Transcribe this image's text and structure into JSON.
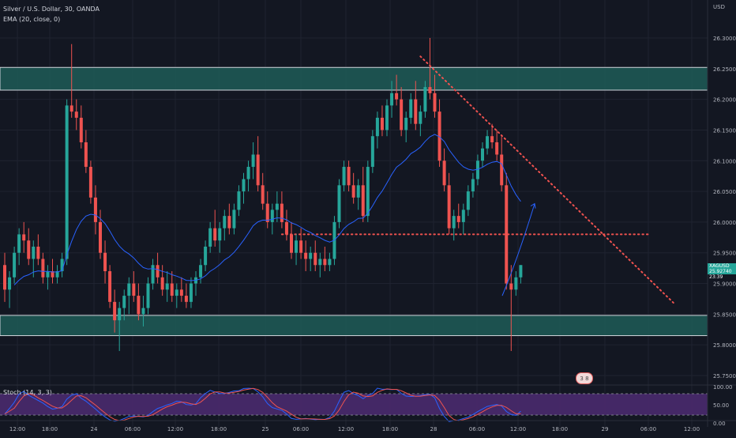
{
  "legend": {
    "symbol_line": "Silver / U.S. Dollar, 30, OANDA",
    "ema_line": "EMA (20, close, 0)"
  },
  "price_axis": {
    "currency": "USD",
    "ticks": [
      "26.30000",
      "26.25000",
      "26.20000",
      "26.15000",
      "26.10000",
      "26.05000",
      "26.00000",
      "25.95000",
      "25.90000",
      "25.85000",
      "25.80000",
      "25.75000"
    ],
    "tick_values": [
      26.3,
      26.25,
      26.2,
      26.15,
      26.1,
      26.05,
      26.0,
      25.95,
      25.9,
      25.85,
      25.8,
      25.75
    ],
    "current_symbol": "XAGUSD",
    "current_price": "25.92740",
    "countdown": "23:39"
  },
  "time_axis": {
    "ticks": [
      "12:00",
      "18:00",
      "24",
      "06:00",
      "12:00",
      "18:00",
      "25",
      "06:00",
      "12:00",
      "18:00",
      "28",
      "06:00",
      "12:00",
      "18:00",
      "29",
      "06:00",
      "12:00"
    ]
  },
  "stoch": {
    "label": "Stoch (14, 3, 3)",
    "ticks": [
      "100.00",
      "50.00",
      "0.00"
    ],
    "tick_values": [
      100,
      50,
      0
    ]
  },
  "badge": {
    "text": "3 8"
  },
  "colors": {
    "background": "#131722",
    "up": "#26a69a",
    "down": "#ef5350",
    "ema": "#2962ff",
    "zone_fill": "#1e5c57",
    "zone_border": "#d1d4dc",
    "trend_dots": "#f0524f",
    "stoch_band": "#4a2a6e",
    "stoch_k": "#2962ff",
    "stoch_d": "#ef5350"
  },
  "chart_data": {
    "type": "candlestick",
    "title": "Silver / U.S. Dollar, 30, OANDA",
    "ylim": [
      25.73,
      26.33
    ],
    "zones": [
      {
        "name": "resistance",
        "from": 26.215,
        "to": 26.252
      },
      {
        "name": "support",
        "from": 25.815,
        "to": 25.848
      }
    ],
    "horizontal_line": 25.98,
    "trendline": {
      "from_index": 87,
      "from_value": 26.27,
      "to_index": 152,
      "to_value": 25.865
    },
    "projection_arrow": {
      "from_index": 114,
      "from_value": 25.88,
      "to_index": 122,
      "to_value": 26.03
    },
    "candles": [
      [
        25.93,
        25.95,
        25.87,
        25.89
      ],
      [
        25.89,
        25.92,
        25.86,
        25.91
      ],
      [
        25.91,
        25.96,
        25.9,
        25.95
      ],
      [
        25.95,
        25.99,
        25.93,
        25.98
      ],
      [
        25.98,
        26.0,
        25.95,
        25.97
      ],
      [
        25.97,
        25.99,
        25.93,
        25.94
      ],
      [
        25.94,
        25.97,
        25.91,
        25.96
      ],
      [
        25.96,
        25.98,
        25.93,
        25.94
      ],
      [
        25.94,
        25.95,
        25.9,
        25.91
      ],
      [
        25.91,
        25.93,
        25.89,
        25.92
      ],
      [
        25.92,
        25.94,
        25.9,
        25.91
      ],
      [
        25.91,
        25.93,
        25.9,
        25.92
      ],
      [
        25.92,
        25.95,
        25.91,
        25.94
      ],
      [
        25.94,
        26.2,
        25.93,
        26.19
      ],
      [
        26.19,
        26.29,
        26.17,
        26.18
      ],
      [
        26.18,
        26.2,
        26.15,
        26.17
      ],
      [
        26.17,
        26.19,
        26.12,
        26.13
      ],
      [
        26.13,
        26.15,
        26.08,
        26.09
      ],
      [
        26.09,
        26.1,
        26.03,
        26.04
      ],
      [
        26.04,
        26.06,
        25.98,
        26.0
      ],
      [
        26.0,
        26.02,
        25.94,
        25.95
      ],
      [
        25.95,
        25.97,
        25.9,
        25.92
      ],
      [
        25.92,
        25.93,
        25.86,
        25.87
      ],
      [
        25.87,
        25.89,
        25.82,
        25.84
      ],
      [
        25.84,
        25.87,
        25.79,
        25.86
      ],
      [
        25.86,
        25.89,
        25.84,
        25.88
      ],
      [
        25.88,
        25.91,
        25.85,
        25.9
      ],
      [
        25.9,
        25.92,
        25.87,
        25.88
      ],
      [
        25.88,
        25.9,
        25.84,
        25.85
      ],
      [
        25.85,
        25.88,
        25.83,
        25.86
      ],
      [
        25.86,
        25.91,
        25.85,
        25.9
      ],
      [
        25.9,
        25.94,
        25.89,
        25.93
      ],
      [
        25.93,
        25.95,
        25.9,
        25.91
      ],
      [
        25.91,
        25.93,
        25.88,
        25.89
      ],
      [
        25.89,
        25.92,
        25.87,
        25.9
      ],
      [
        25.9,
        25.92,
        25.87,
        25.88
      ],
      [
        25.88,
        25.9,
        25.86,
        25.89
      ],
      [
        25.89,
        25.91,
        25.87,
        25.88
      ],
      [
        25.88,
        25.9,
        25.86,
        25.87
      ],
      [
        25.87,
        25.91,
        25.86,
        25.9
      ],
      [
        25.9,
        25.92,
        25.88,
        25.91
      ],
      [
        25.91,
        25.94,
        25.9,
        25.93
      ],
      [
        25.93,
        25.97,
        25.92,
        25.96
      ],
      [
        25.96,
        26.0,
        25.95,
        25.99
      ],
      [
        25.99,
        26.02,
        25.96,
        25.97
      ],
      [
        25.97,
        26.0,
        25.95,
        25.99
      ],
      [
        25.99,
        26.02,
        25.97,
        26.01
      ],
      [
        26.01,
        26.03,
        25.98,
        25.99
      ],
      [
        25.99,
        26.03,
        25.98,
        26.02
      ],
      [
        26.02,
        26.06,
        26.01,
        26.05
      ],
      [
        26.05,
        26.08,
        26.03,
        26.07
      ],
      [
        26.07,
        26.1,
        26.05,
        26.09
      ],
      [
        26.09,
        26.13,
        26.07,
        26.11
      ],
      [
        26.11,
        26.14,
        26.05,
        26.06
      ],
      [
        26.06,
        26.08,
        26.02,
        26.03
      ],
      [
        26.03,
        26.05,
        25.99,
        26.0
      ],
      [
        26.0,
        26.03,
        25.98,
        26.02
      ],
      [
        26.02,
        26.05,
        26.0,
        26.03
      ],
      [
        26.03,
        26.05,
        25.99,
        26.0
      ],
      [
        26.0,
        26.02,
        25.97,
        25.98
      ],
      [
        25.98,
        26.0,
        25.94,
        25.95
      ],
      [
        25.95,
        25.98,
        25.93,
        25.97
      ],
      [
        25.97,
        25.99,
        25.94,
        25.95
      ],
      [
        25.95,
        25.97,
        25.92,
        25.94
      ],
      [
        25.94,
        25.96,
        25.92,
        25.95
      ],
      [
        25.95,
        25.97,
        25.92,
        25.93
      ],
      [
        25.93,
        25.95,
        25.91,
        25.94
      ],
      [
        25.94,
        25.96,
        25.92,
        25.93
      ],
      [
        25.93,
        25.95,
        25.92,
        25.94
      ],
      [
        25.94,
        26.01,
        25.93,
        26.0
      ],
      [
        26.0,
        26.07,
        25.99,
        26.06
      ],
      [
        26.06,
        26.1,
        26.05,
        26.09
      ],
      [
        26.09,
        26.1,
        26.05,
        26.06
      ],
      [
        26.06,
        26.08,
        26.03,
        26.04
      ],
      [
        26.04,
        26.07,
        26.02,
        26.06
      ],
      [
        26.06,
        26.09,
        26.0,
        26.01
      ],
      [
        26.01,
        26.1,
        26.0,
        26.09
      ],
      [
        26.09,
        26.15,
        26.08,
        26.14
      ],
      [
        26.14,
        26.18,
        26.12,
        26.17
      ],
      [
        26.17,
        26.19,
        26.14,
        26.15
      ],
      [
        26.15,
        26.2,
        26.14,
        26.19
      ],
      [
        26.19,
        26.23,
        26.17,
        26.21
      ],
      [
        26.21,
        26.24,
        26.19,
        26.2
      ],
      [
        26.2,
        26.22,
        26.14,
        26.15
      ],
      [
        26.15,
        26.18,
        26.13,
        26.17
      ],
      [
        26.17,
        26.21,
        26.16,
        26.2
      ],
      [
        26.2,
        26.23,
        26.15,
        26.16
      ],
      [
        26.16,
        26.19,
        26.14,
        26.18
      ],
      [
        26.18,
        26.23,
        26.17,
        26.22
      ],
      [
        26.22,
        26.3,
        26.2,
        26.21
      ],
      [
        26.21,
        26.24,
        26.17,
        26.18
      ],
      [
        26.18,
        26.2,
        26.09,
        26.1
      ],
      [
        26.1,
        26.12,
        26.05,
        26.06
      ],
      [
        26.06,
        26.08,
        25.98,
        25.99
      ],
      [
        25.99,
        26.02,
        25.97,
        26.01
      ],
      [
        26.01,
        26.03,
        25.99,
        26.0
      ],
      [
        26.0,
        26.03,
        25.98,
        26.02
      ],
      [
        26.02,
        26.06,
        26.01,
        26.05
      ],
      [
        26.05,
        26.08,
        26.04,
        26.07
      ],
      [
        26.07,
        26.11,
        26.06,
        26.1
      ],
      [
        26.1,
        26.13,
        26.09,
        26.12
      ],
      [
        26.12,
        26.15,
        26.11,
        26.14
      ],
      [
        26.14,
        26.16,
        26.12,
        26.13
      ],
      [
        26.13,
        26.15,
        26.1,
        26.11
      ],
      [
        26.11,
        26.14,
        26.05,
        26.06
      ],
      [
        26.06,
        26.08,
        25.89,
        25.9
      ],
      [
        25.9,
        25.93,
        25.79,
        25.89
      ],
      [
        25.89,
        25.92,
        25.88,
        25.91
      ],
      [
        25.91,
        25.93,
        25.9,
        25.93
      ]
    ]
  }
}
